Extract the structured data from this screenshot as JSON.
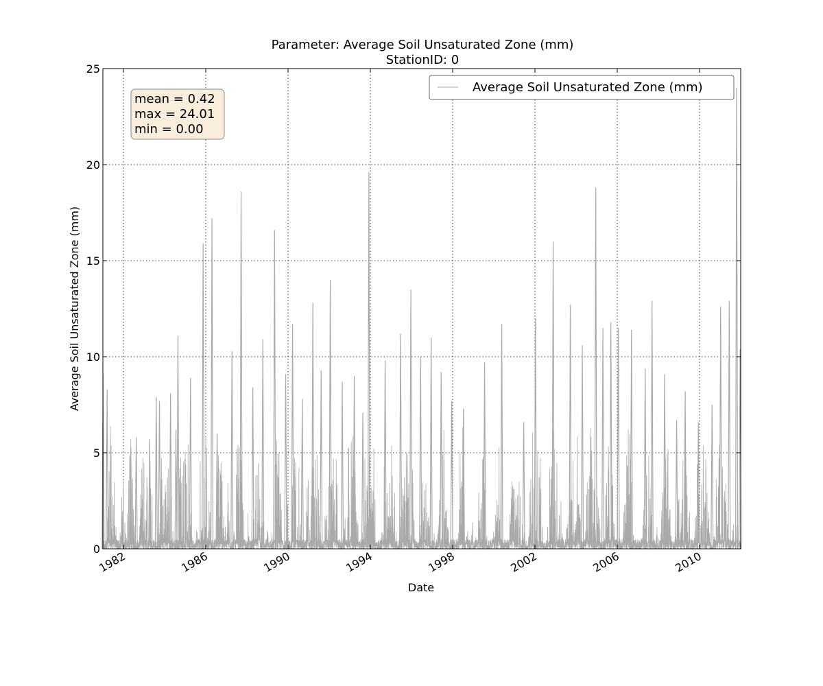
{
  "chart_data": {
    "type": "line",
    "title": "Parameter: Average Soil Unsaturated Zone (mm)",
    "subtitle": "StationID: 0",
    "xlabel": "Date",
    "ylabel": "Average Soil Unsaturated Zone (mm)",
    "xlim": [
      "1981-01-01",
      "2012-01-01"
    ],
    "ylim": [
      0,
      25
    ],
    "x_ticks": [
      "1982",
      "1986",
      "1990",
      "1994",
      "1998",
      "2002",
      "2006",
      "2010"
    ],
    "y_ticks": [
      "0",
      "5",
      "10",
      "15",
      "20",
      "25"
    ],
    "grid": true,
    "legend": {
      "position": "top-right",
      "entries": [
        "Average Soil Unsaturated Zone (mm)"
      ]
    },
    "stats_box": [
      "mean = 0.42",
      "max = 24.01",
      "min = 0.00"
    ],
    "stats_box_color": "#f9eedb",
    "series": [
      {
        "name": "Average Soil Unsaturated Zone (mm)",
        "color": "#a9a9a9",
        "peaks": [
          {
            "x": "1981-01-05",
            "y": 9.1
          },
          {
            "x": "1981-03-15",
            "y": 8.3
          },
          {
            "x": "1982-05-10",
            "y": 5.3
          },
          {
            "x": "1982-08-15",
            "y": 5.8
          },
          {
            "x": "1983-04-10",
            "y": 5.7
          },
          {
            "x": "1983-08-05",
            "y": 7.9
          },
          {
            "x": "1983-10-01",
            "y": 7.7
          },
          {
            "x": "1984-04-15",
            "y": 8.1
          },
          {
            "x": "1984-07-20",
            "y": 6.2
          },
          {
            "x": "1984-08-25",
            "y": 11.1
          },
          {
            "x": "1985-04-05",
            "y": 8.9
          },
          {
            "x": "1985-11-15",
            "y": 15.9
          },
          {
            "x": "1986-04-20",
            "y": 17.2
          },
          {
            "x": "1986-07-20",
            "y": 6.0
          },
          {
            "x": "1987-04-10",
            "y": 10.3
          },
          {
            "x": "1987-09-20",
            "y": 18.6
          },
          {
            "x": "1988-04-15",
            "y": 8.4
          },
          {
            "x": "1988-10-10",
            "y": 10.9
          },
          {
            "x": "1989-05-05",
            "y": 16.6
          },
          {
            "x": "1989-11-20",
            "y": 9.1
          },
          {
            "x": "1990-03-20",
            "y": 11.7
          },
          {
            "x": "1990-09-10",
            "y": 7.8
          },
          {
            "x": "1991-03-15",
            "y": 12.8
          },
          {
            "x": "1991-08-10",
            "y": 9.3
          },
          {
            "x": "1992-01-20",
            "y": 14.0
          },
          {
            "x": "1992-08-20",
            "y": 8.7
          },
          {
            "x": "1993-03-20",
            "y": 9.0
          },
          {
            "x": "1993-08-20",
            "y": 7.1
          },
          {
            "x": "1993-12-05",
            "y": 19.6
          },
          {
            "x": "1994-09-20",
            "y": 9.8
          },
          {
            "x": "1995-06-20",
            "y": 11.2
          },
          {
            "x": "1995-12-20",
            "y": 13.5
          },
          {
            "x": "1996-06-10",
            "y": 10.0
          },
          {
            "x": "1996-12-15",
            "y": 11.0
          },
          {
            "x": "1997-06-10",
            "y": 9.2
          },
          {
            "x": "1997-12-15",
            "y": 7.7
          },
          {
            "x": "1998-07-10",
            "y": 7.3
          },
          {
            "x": "1999-07-20",
            "y": 9.7
          },
          {
            "x": "2000-05-20",
            "y": 11.7
          },
          {
            "x": "2001-06-15",
            "y": 6.6
          },
          {
            "x": "2002-01-10",
            "y": 12.0
          },
          {
            "x": "2002-11-20",
            "y": 16.0
          },
          {
            "x": "2003-09-20",
            "y": 12.7
          },
          {
            "x": "2004-04-20",
            "y": 10.6
          },
          {
            "x": "2004-12-15",
            "y": 18.8
          },
          {
            "x": "2005-04-20",
            "y": 11.5
          },
          {
            "x": "2005-09-10",
            "y": 11.8
          },
          {
            "x": "2006-01-20",
            "y": 11.5
          },
          {
            "x": "2006-09-10",
            "y": 11.4
          },
          {
            "x": "2007-05-10",
            "y": 9.4
          },
          {
            "x": "2007-09-10",
            "y": 12.9
          },
          {
            "x": "2008-04-20",
            "y": 9.1
          },
          {
            "x": "2008-11-20",
            "y": 6.7
          },
          {
            "x": "2009-04-20",
            "y": 8.2
          },
          {
            "x": "2009-12-10",
            "y": 6.6
          },
          {
            "x": "2010-08-10",
            "y": 7.5
          },
          {
            "x": "2011-01-10",
            "y": 12.6
          },
          {
            "x": "2011-06-10",
            "y": 12.9
          },
          {
            "x": "2011-10-20",
            "y": 24.01
          },
          {
            "x": "2011-12-20",
            "y": 10.4
          }
        ]
      }
    ]
  }
}
